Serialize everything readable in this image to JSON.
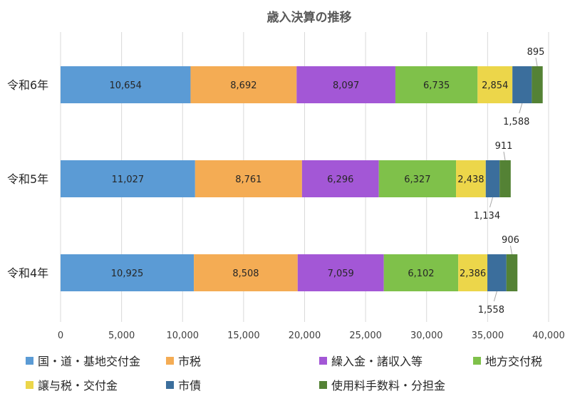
{
  "chart_data": {
    "type": "bar",
    "orientation": "horizontal",
    "stacked": true,
    "title": "歳入決算の推移",
    "categories": [
      "令和6年",
      "令和5年",
      "令和4年"
    ],
    "series": [
      {
        "name": "国・道・基地交付金",
        "color": "#5b9bd5",
        "values": [
          10654,
          11027,
          10925
        ]
      },
      {
        "name": "市税",
        "color": "#f4ac54",
        "values": [
          8692,
          8761,
          8508
        ]
      },
      {
        "name": "繰入金・諸収入等",
        "color": "#a357d6",
        "values": [
          8097,
          6296,
          7059
        ]
      },
      {
        "name": "地方交付税",
        "color": "#7fc14a",
        "values": [
          6735,
          6327,
          6102
        ]
      },
      {
        "name": "譲与税・交付金",
        "color": "#ecd64a",
        "values": [
          2854,
          2438,
          2386
        ]
      },
      {
        "name": "市債",
        "color": "#3b6e9c",
        "values": [
          1588,
          1134,
          1558
        ]
      },
      {
        "name": "使用料手数料・分担金",
        "color": "#548235",
        "values": [
          895,
          911,
          906
        ]
      }
    ],
    "value_labels": [
      [
        "10,654",
        "8,692",
        "8,097",
        "6,735",
        "2,854",
        "1,588",
        "895"
      ],
      [
        "11,027",
        "8,761",
        "6,296",
        "6,327",
        "2,438",
        "1,134",
        "911"
      ],
      [
        "10,925",
        "8,508",
        "7,059",
        "6,102",
        "2,386",
        "1,558",
        "906"
      ]
    ],
    "xlim": [
      0,
      40000
    ],
    "xticks": [
      0,
      5000,
      10000,
      15000,
      20000,
      25000,
      30000,
      35000,
      40000
    ],
    "xtick_labels": [
      "0",
      "5,000",
      "10,000",
      "15,000",
      "20,000",
      "25,000",
      "30,000",
      "35,000",
      "40,000"
    ],
    "grid": true,
    "legend_position": "bottom"
  }
}
